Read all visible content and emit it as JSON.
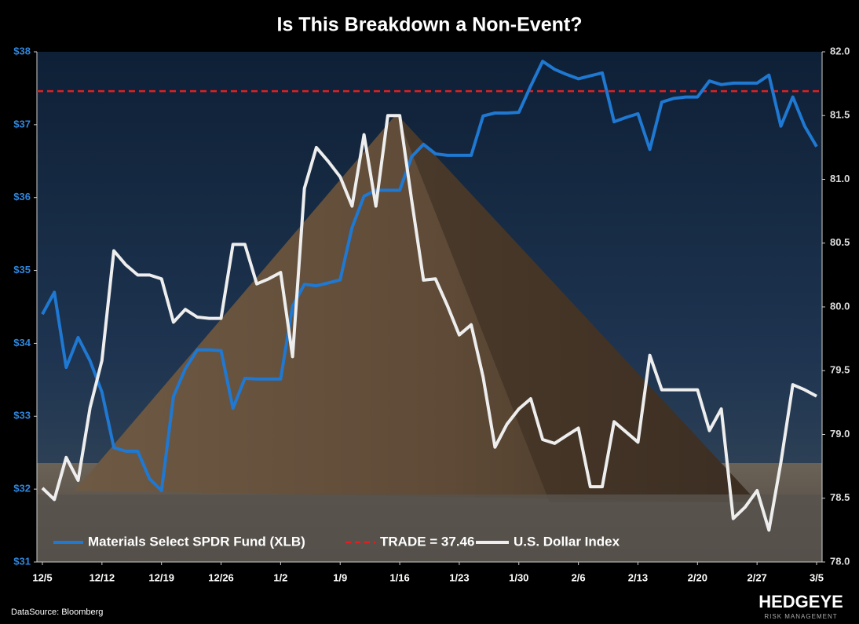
{
  "chart_data": {
    "type": "line",
    "title": "Is This Breakdown a Non-Event?",
    "categories": [
      "12/5",
      null,
      null,
      null,
      null,
      "12/12",
      null,
      null,
      null,
      null,
      "12/19",
      null,
      null,
      null,
      null,
      "12/26",
      null,
      null,
      null,
      null,
      "1/2",
      null,
      null,
      null,
      null,
      "1/9",
      null,
      null,
      null,
      null,
      "1/16",
      null,
      null,
      null,
      null,
      "1/23",
      null,
      null,
      null,
      null,
      "1/30",
      null,
      null,
      null,
      null,
      "2/6",
      null,
      null,
      null,
      null,
      "2/13",
      null,
      null,
      null,
      null,
      "2/20",
      null,
      null,
      null,
      null,
      "2/27",
      null,
      null,
      null,
      null,
      "3/5"
    ],
    "series": [
      {
        "name": "Materials Select SPDR Fund (XLB)",
        "color": "#1f78d1",
        "axis": "y",
        "values": [
          34.4,
          34.7,
          33.67,
          34.08,
          33.76,
          33.33,
          32.57,
          32.52,
          32.52,
          32.14,
          31.98,
          33.27,
          33.65,
          33.91,
          33.91,
          33.9,
          33.11,
          33.52,
          33.51,
          33.51,
          33.51,
          34.51,
          34.81,
          34.79,
          34.83,
          34.87,
          35.59,
          36.02,
          36.1,
          36.1,
          36.1,
          36.56,
          36.73,
          36.6,
          36.58,
          36.58,
          36.58,
          37.12,
          37.16,
          37.16,
          37.17,
          37.53,
          37.87,
          37.76,
          37.69,
          37.63,
          37.67,
          37.71,
          37.04,
          37.1,
          37.15,
          36.66,
          37.31,
          37.36,
          37.38,
          37.38,
          37.6,
          37.55,
          37.57,
          37.57,
          37.57,
          37.68,
          36.98,
          37.38,
          36.98,
          36.7
        ]
      },
      {
        "name": "U.S. Dollar Index",
        "color": "#eeeeee",
        "axis": "y2",
        "values": [
          78.58,
          78.49,
          78.82,
          78.64,
          79.21,
          79.58,
          80.44,
          80.33,
          80.25,
          80.25,
          80.22,
          79.88,
          79.98,
          79.92,
          79.91,
          79.91,
          80.49,
          80.49,
          80.18,
          80.22,
          80.27,
          79.61,
          80.93,
          81.25,
          81.14,
          81.02,
          80.79,
          81.35,
          80.79,
          81.5,
          81.5,
          80.84,
          80.21,
          80.22,
          80.01,
          79.78,
          79.86,
          79.45,
          78.9,
          79.08,
          79.2,
          79.28,
          78.96,
          78.93,
          78.99,
          79.05,
          78.59,
          78.59,
          79.1,
          79.02,
          78.94,
          79.62,
          79.35,
          79.35,
          79.35,
          79.35,
          79.03,
          79.2,
          78.34,
          78.43,
          78.56,
          78.25,
          78.78,
          79.39,
          79.35,
          79.3
        ]
      }
    ],
    "reference_line": {
      "name": "TRADE = 37.46",
      "value": 37.46,
      "color": "#e02020",
      "axis": "y"
    },
    "ylim": [
      31,
      38
    ],
    "yticks": [
      {
        "value": 31,
        "label": "$31"
      },
      {
        "value": 32,
        "label": "$32"
      },
      {
        "value": 33,
        "label": "$33"
      },
      {
        "value": 34,
        "label": "$34"
      },
      {
        "value": 35,
        "label": "$35"
      },
      {
        "value": 36,
        "label": "$36"
      },
      {
        "value": 37,
        "label": "$37"
      },
      {
        "value": 38,
        "label": "$38"
      }
    ],
    "y_tick_color": "#2f86dc",
    "y2lim": [
      78,
      82
    ],
    "y2ticks": [
      {
        "value": 78,
        "label": "78.0"
      },
      78.5,
      {
        "value": 79,
        "label": "79.0"
      },
      79.5,
      {
        "value": 80,
        "label": "80.0"
      },
      80.5,
      {
        "value": 81,
        "label": "81.0"
      },
      81.5,
      {
        "value": 82,
        "label": "82.0"
      }
    ],
    "legend": "bottom-left"
  },
  "footer": {
    "source": "DataSource: Bloomberg",
    "logo": "HEDGEYE",
    "logo_sub": "RISK MANAGEMENT"
  }
}
